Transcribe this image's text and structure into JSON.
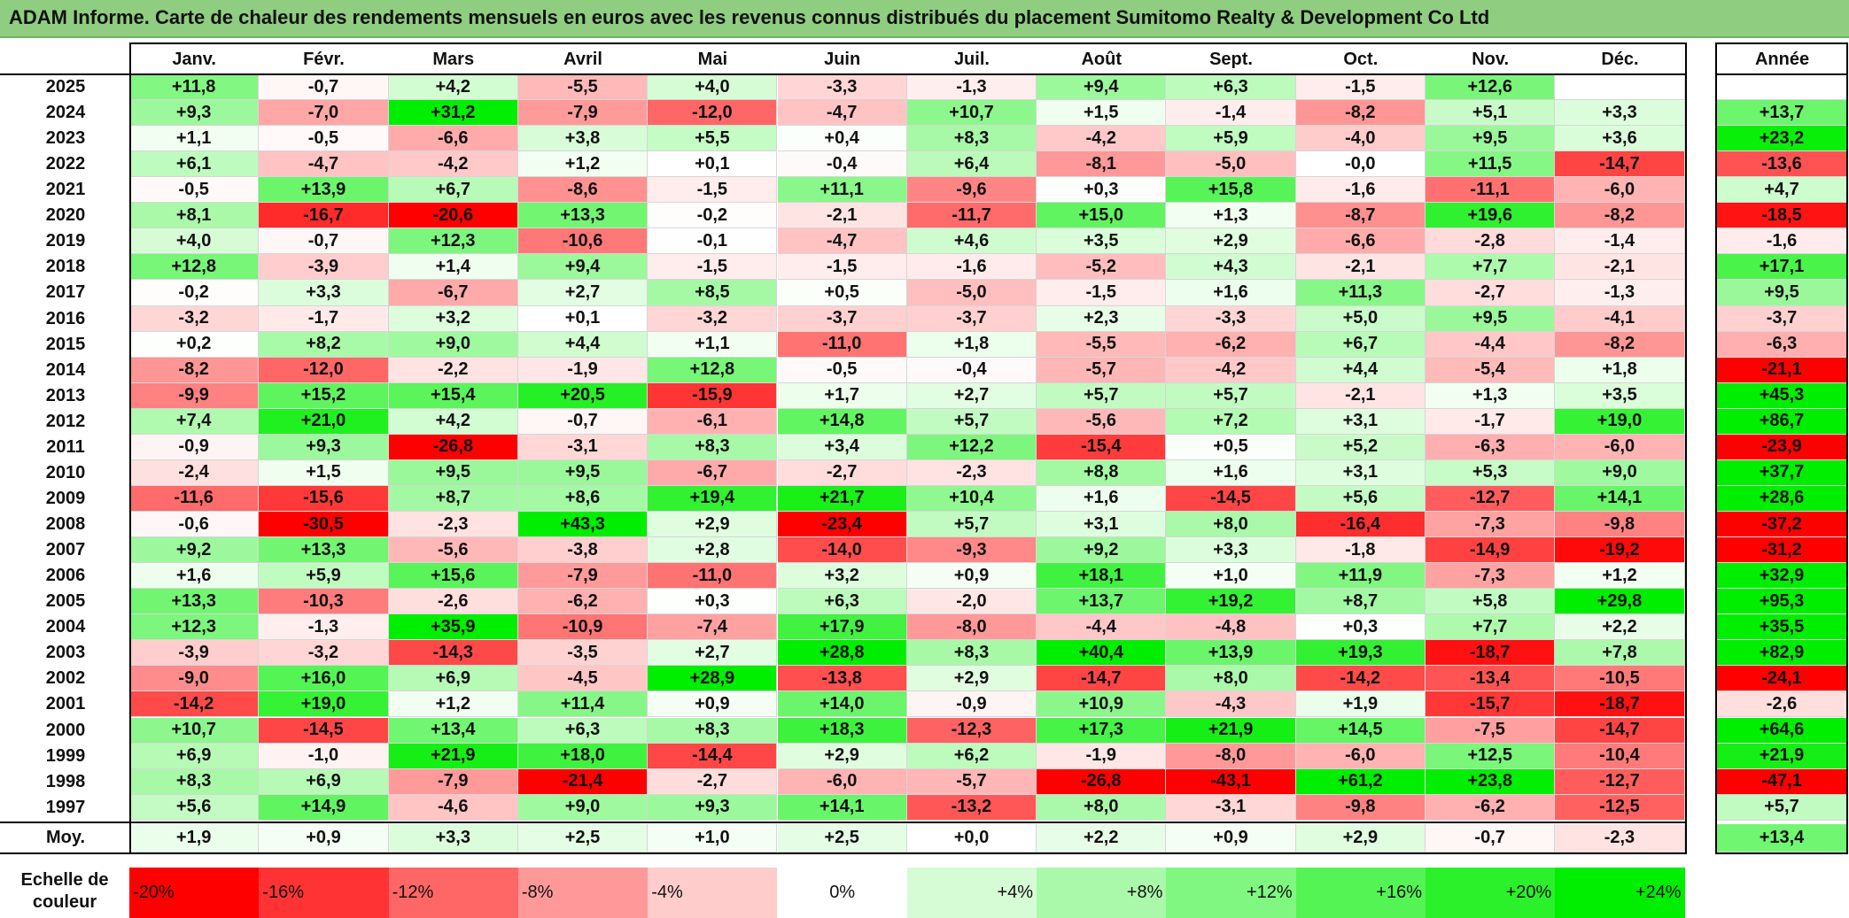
{
  "title": "ADAM Informe. Carte de chaleur des rendements mensuels en euros avec les revenus connus distribués du placement Sumitomo Realty & Development Co Ltd",
  "chart_data": {
    "type": "heatmap",
    "months": [
      "Janv.",
      "Févr.",
      "Mars",
      "Avril",
      "Mai",
      "Juin",
      "Juil.",
      "Août",
      "Sept.",
      "Oct.",
      "Nov.",
      "Déc."
    ],
    "annual_header": "Année",
    "rows": [
      {
        "year": "2025",
        "values": [
          "+11,8",
          "-0,7",
          "+4,2",
          "-5,5",
          "+4,0",
          "-3,3",
          "-1,3",
          "+9,4",
          "+6,3",
          "-1,5",
          "+12,6",
          ""
        ],
        "annual": ""
      },
      {
        "year": "2024",
        "values": [
          "+9,3",
          "-7,0",
          "+31,2",
          "-7,9",
          "-12,0",
          "-4,7",
          "+10,7",
          "+1,5",
          "-1,4",
          "-8,2",
          "+5,1",
          "+3,3"
        ],
        "annual": "+13,7"
      },
      {
        "year": "2023",
        "values": [
          "+1,1",
          "-0,5",
          "-6,6",
          "+3,8",
          "+5,5",
          "+0,4",
          "+8,3",
          "-4,2",
          "+5,9",
          "-4,0",
          "+9,5",
          "+3,6"
        ],
        "annual": "+23,2"
      },
      {
        "year": "2022",
        "values": [
          "+6,1",
          "-4,7",
          "-4,2",
          "+1,2",
          "+0,1",
          "-0,4",
          "+6,4",
          "-8,1",
          "-5,0",
          "-0,0",
          "+11,5",
          "-14,7"
        ],
        "annual": "-13,6"
      },
      {
        "year": "2021",
        "values": [
          "-0,5",
          "+13,9",
          "+6,7",
          "-8,6",
          "-1,5",
          "+11,1",
          "-9,6",
          "+0,3",
          "+15,8",
          "-1,6",
          "-11,1",
          "-6,0"
        ],
        "annual": "+4,7"
      },
      {
        "year": "2020",
        "values": [
          "+8,1",
          "-16,7",
          "-20,6",
          "+13,3",
          "-0,2",
          "-2,1",
          "-11,7",
          "+15,0",
          "+1,3",
          "-8,7",
          "+19,6",
          "-8,2"
        ],
        "annual": "-18,5"
      },
      {
        "year": "2019",
        "values": [
          "+4,0",
          "-0,7",
          "+12,3",
          "-10,6",
          "-0,1",
          "-4,7",
          "+4,6",
          "+3,5",
          "+2,9",
          "-6,6",
          "-2,8",
          "-1,4"
        ],
        "annual": "-1,6"
      },
      {
        "year": "2018",
        "values": [
          "+12,8",
          "-3,9",
          "+1,4",
          "+9,4",
          "-1,5",
          "-1,5",
          "-1,6",
          "-5,2",
          "+4,3",
          "-2,1",
          "+7,7",
          "-2,1"
        ],
        "annual": "+17,1"
      },
      {
        "year": "2017",
        "values": [
          "-0,2",
          "+3,3",
          "-6,7",
          "+2,7",
          "+8,5",
          "+0,5",
          "-5,0",
          "-1,5",
          "+1,6",
          "+11,3",
          "-2,7",
          "-1,3"
        ],
        "annual": "+9,5"
      },
      {
        "year": "2016",
        "values": [
          "-3,2",
          "-1,7",
          "+3,2",
          "+0,1",
          "-3,2",
          "-3,7",
          "-3,7",
          "+2,3",
          "-3,3",
          "+5,0",
          "+9,5",
          "-4,1"
        ],
        "annual": "-3,7"
      },
      {
        "year": "2015",
        "values": [
          "+0,2",
          "+8,2",
          "+9,0",
          "+4,4",
          "+1,1",
          "-11,0",
          "+1,8",
          "-5,5",
          "-6,2",
          "+6,7",
          "-4,4",
          "-8,2"
        ],
        "annual": "-6,3"
      },
      {
        "year": "2014",
        "values": [
          "-8,2",
          "-12,0",
          "-2,2",
          "-1,9",
          "+12,8",
          "-0,5",
          "-0,4",
          "-5,7",
          "-4,2",
          "+4,4",
          "-5,4",
          "+1,8"
        ],
        "annual": "-21,1"
      },
      {
        "year": "2013",
        "values": [
          "-9,9",
          "+15,2",
          "+15,4",
          "+20,5",
          "-15,9",
          "+1,7",
          "+2,7",
          "+5,7",
          "+5,7",
          "-2,1",
          "+1,3",
          "+3,5"
        ],
        "annual": "+45,3"
      },
      {
        "year": "2012",
        "values": [
          "+7,4",
          "+21,0",
          "+4,2",
          "-0,7",
          "-6,1",
          "+14,8",
          "+5,7",
          "-5,6",
          "+7,2",
          "+3,1",
          "-1,7",
          "+19,0"
        ],
        "annual": "+86,7"
      },
      {
        "year": "2011",
        "values": [
          "-0,9",
          "+9,3",
          "-26,8",
          "-3,1",
          "+8,3",
          "+3,4",
          "+12,2",
          "-15,4",
          "+0,5",
          "+5,2",
          "-6,3",
          "-6,0"
        ],
        "annual": "-23,9"
      },
      {
        "year": "2010",
        "values": [
          "-2,4",
          "+1,5",
          "+9,5",
          "+9,5",
          "-6,7",
          "-2,7",
          "-2,3",
          "+8,8",
          "+1,6",
          "+3,1",
          "+5,3",
          "+9,0"
        ],
        "annual": "+37,7"
      },
      {
        "year": "2009",
        "values": [
          "-11,6",
          "-15,6",
          "+8,7",
          "+8,6",
          "+19,4",
          "+21,7",
          "+10,4",
          "+1,6",
          "-14,5",
          "+5,6",
          "-12,7",
          "+14,1"
        ],
        "annual": "+28,6"
      },
      {
        "year": "2008",
        "values": [
          "-0,6",
          "-30,5",
          "-2,3",
          "+43,3",
          "+2,9",
          "-23,4",
          "+5,7",
          "+3,1",
          "+8,0",
          "-16,4",
          "-7,3",
          "-9,8"
        ],
        "annual": "-37,2"
      },
      {
        "year": "2007",
        "values": [
          "+9,2",
          "+13,3",
          "-5,6",
          "-3,8",
          "+2,8",
          "-14,0",
          "-9,3",
          "+9,2",
          "+3,3",
          "-1,8",
          "-14,9",
          "-19,2"
        ],
        "annual": "-31,2"
      },
      {
        "year": "2006",
        "values": [
          "+1,6",
          "+5,9",
          "+15,6",
          "-7,9",
          "-11,0",
          "+3,2",
          "+0,9",
          "+18,1",
          "+1,0",
          "+11,9",
          "-7,3",
          "+1,2"
        ],
        "annual": "+32,9"
      },
      {
        "year": "2005",
        "values": [
          "+13,3",
          "-10,3",
          "-2,6",
          "-6,2",
          "+0,3",
          "+6,3",
          "-2,0",
          "+13,7",
          "+19,2",
          "+8,7",
          "+5,8",
          "+29,8"
        ],
        "annual": "+95,3"
      },
      {
        "year": "2004",
        "values": [
          "+12,3",
          "-1,3",
          "+35,9",
          "-10,9",
          "-7,4",
          "+17,9",
          "-8,0",
          "-4,4",
          "-4,8",
          "+0,3",
          "+7,7",
          "+2,2"
        ],
        "annual": "+35,5"
      },
      {
        "year": "2003",
        "values": [
          "-3,9",
          "-3,2",
          "-14,3",
          "-3,5",
          "+2,7",
          "+28,8",
          "+8,3",
          "+40,4",
          "+13,9",
          "+19,3",
          "-18,7",
          "+7,8"
        ],
        "annual": "+82,9"
      },
      {
        "year": "2002",
        "values": [
          "-9,0",
          "+16,0",
          "+6,9",
          "-4,5",
          "+28,9",
          "-13,8",
          "+2,9",
          "-14,7",
          "+8,0",
          "-14,2",
          "-13,4",
          "-10,5"
        ],
        "annual": "-24,1"
      },
      {
        "year": "2001",
        "values": [
          "-14,2",
          "+19,0",
          "+1,2",
          "+11,4",
          "+0,9",
          "+14,0",
          "-0,9",
          "+10,9",
          "-4,3",
          "+1,9",
          "-15,7",
          "-18,7"
        ],
        "annual": "-2,6"
      },
      {
        "year": "2000",
        "values": [
          "+10,7",
          "-14,5",
          "+13,4",
          "+6,3",
          "+8,3",
          "+18,3",
          "-12,3",
          "+17,3",
          "+21,9",
          "+14,5",
          "-7,5",
          "-14,7"
        ],
        "annual": "+64,6"
      },
      {
        "year": "1999",
        "values": [
          "+6,9",
          "-1,0",
          "+21,9",
          "+18,0",
          "-14,4",
          "+2,9",
          "+6,2",
          "-1,9",
          "-8,0",
          "-6,0",
          "+12,5",
          "-10,4"
        ],
        "annual": "+21,9"
      },
      {
        "year": "1998",
        "values": [
          "+8,3",
          "+6,9",
          "-7,9",
          "-21,4",
          "-2,7",
          "-6,0",
          "-5,7",
          "-26,8",
          "-43,1",
          "+61,2",
          "+23,8",
          "-12,7"
        ],
        "annual": "-47,1"
      },
      {
        "year": "1997",
        "values": [
          "+5,6",
          "+14,9",
          "-4,6",
          "+9,0",
          "+9,3",
          "+14,1",
          "-13,2",
          "+8,0",
          "-3,1",
          "-9,8",
          "-6,2",
          "-12,5"
        ],
        "annual": "+5,7"
      }
    ],
    "average": {
      "label": "Moy.",
      "values": [
        "+1,9",
        "+0,9",
        "+3,3",
        "+2,5",
        "+1,0",
        "+2,5",
        "+0,0",
        "+2,2",
        "+0,9",
        "+2,9",
        "-0,7",
        "-2,3"
      ],
      "annual": "+13,4"
    },
    "color_scale": {
      "label": "Echelle de couleur",
      "stops": [
        "-20%",
        "-16%",
        "-12%",
        "-8%",
        "-4%",
        "0%",
        "+4%",
        "+8%",
        "+12%",
        "+16%",
        "+20%",
        "+24%"
      ],
      "negative_color": "#ff0000",
      "neutral_color": "#ffffff",
      "positive_color": "#00ee00"
    }
  }
}
